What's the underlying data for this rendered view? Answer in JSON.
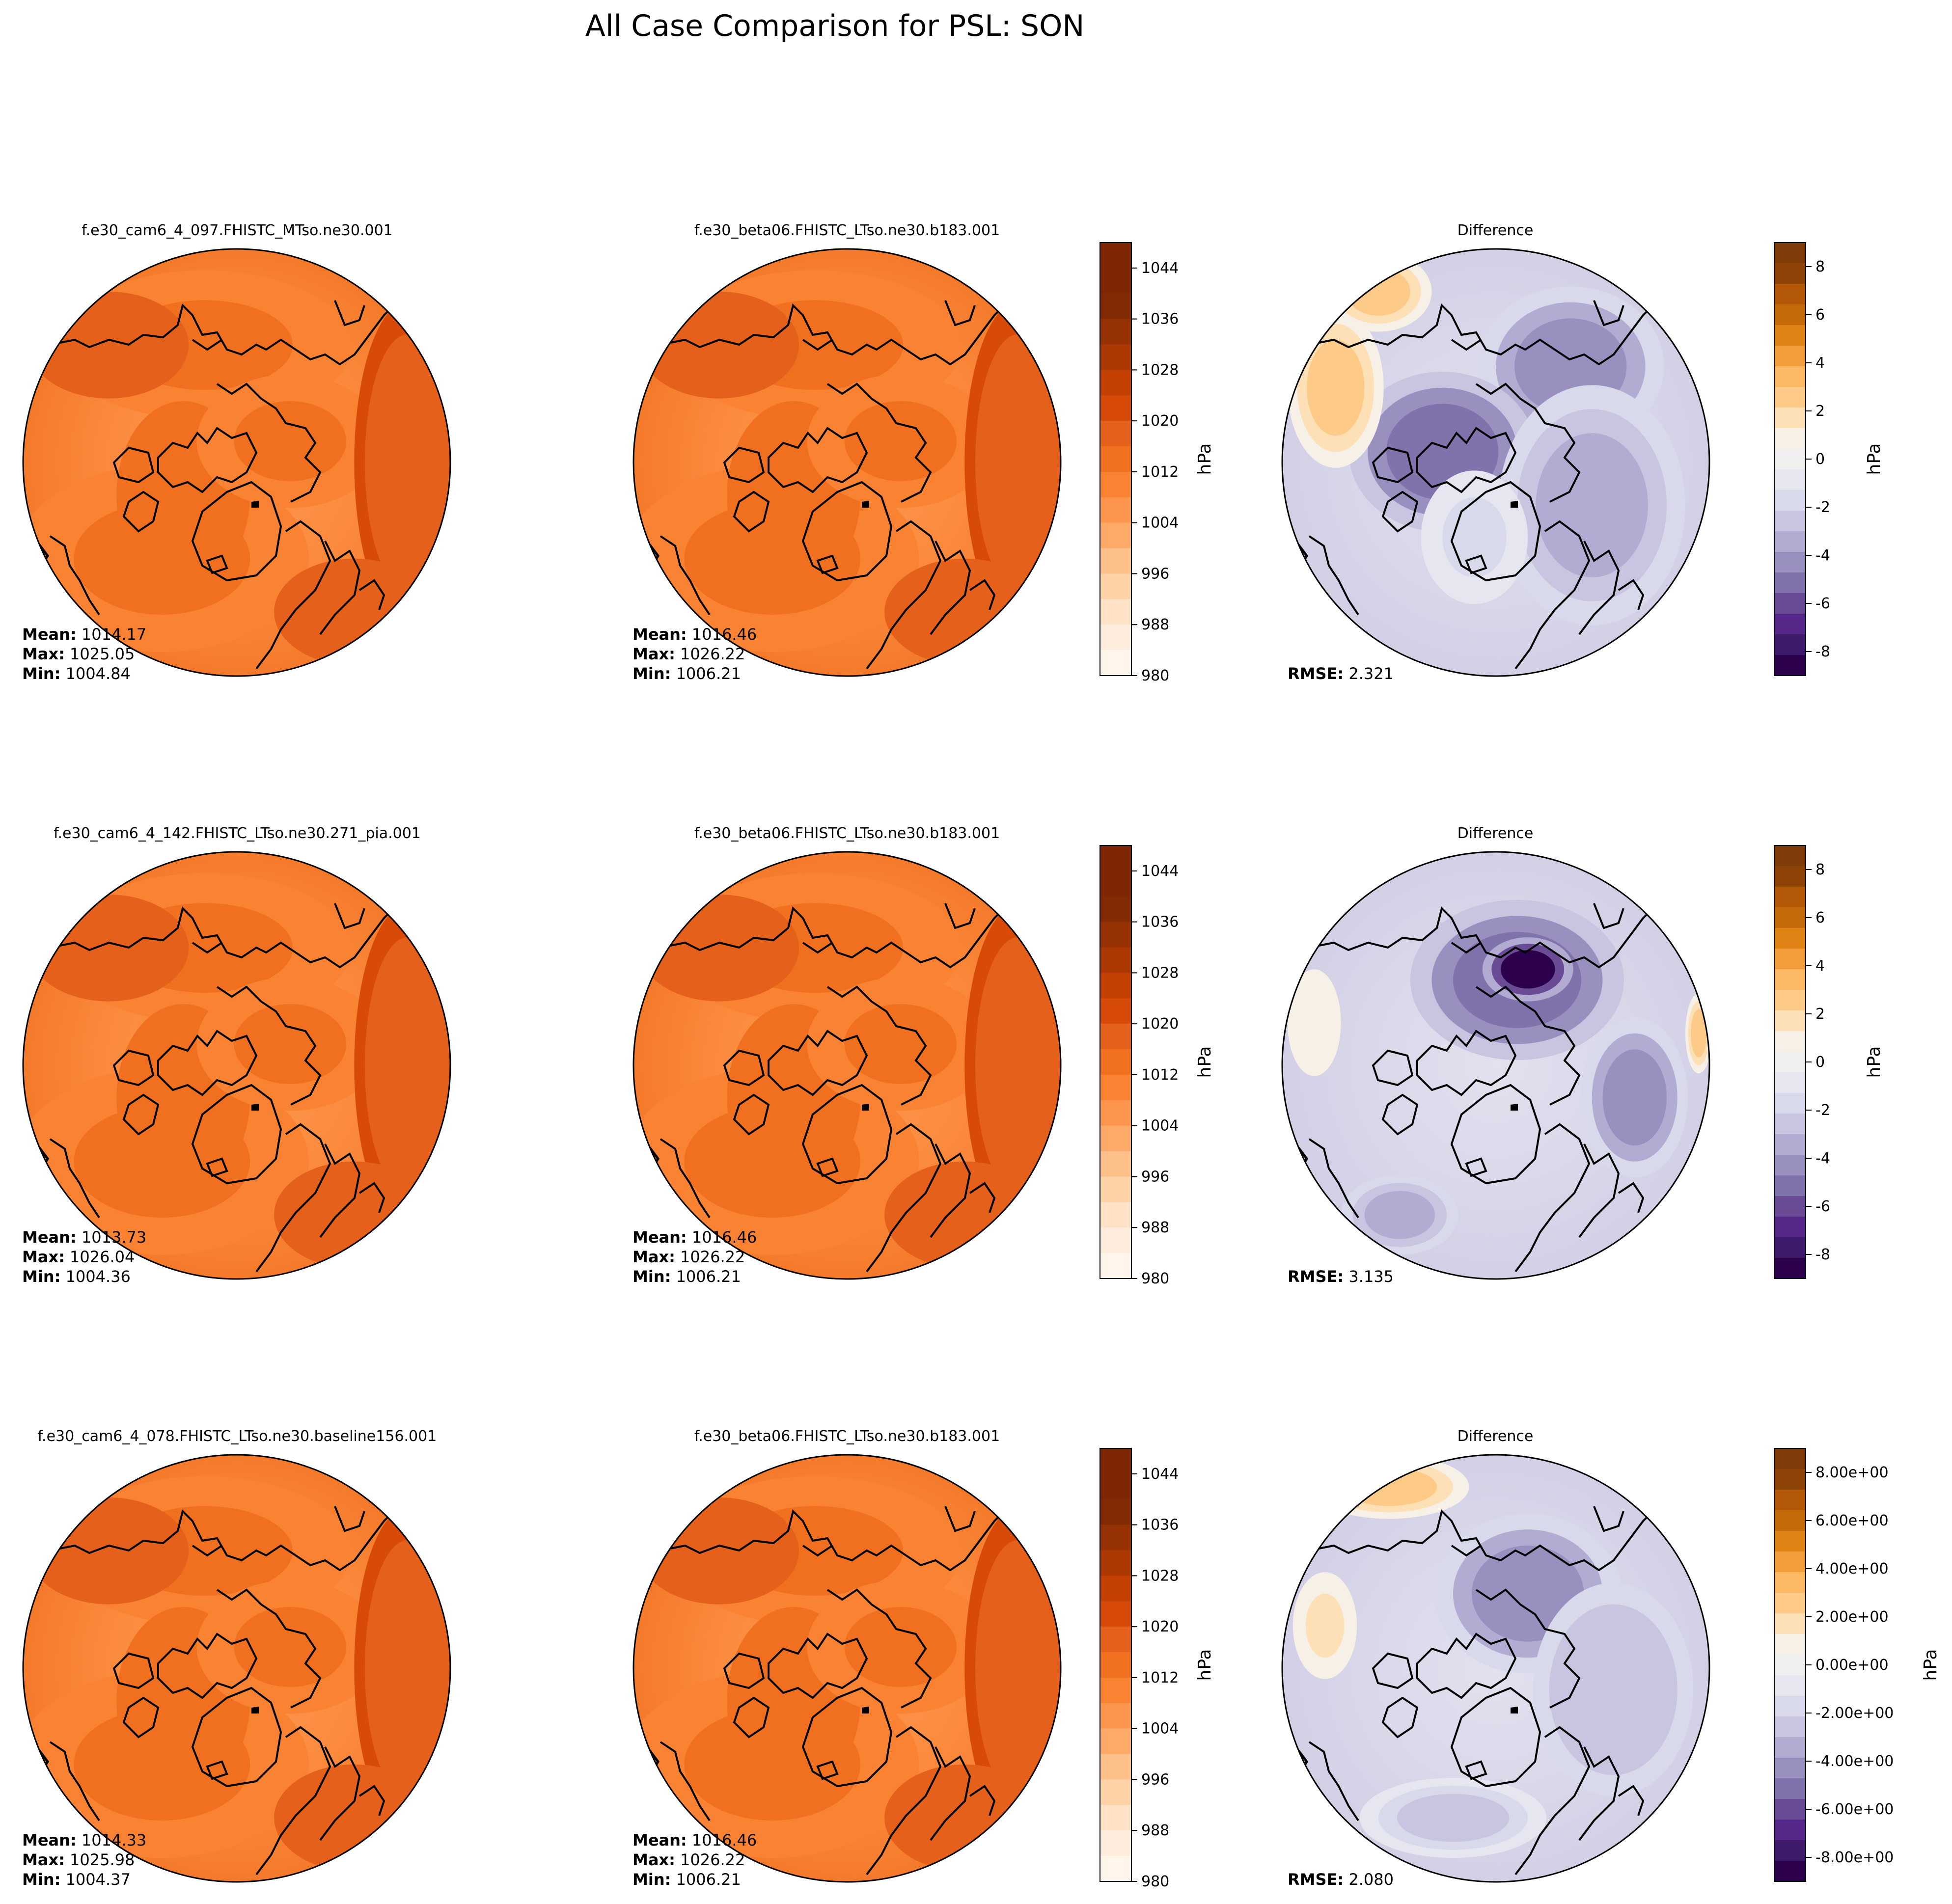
{
  "suptitle": "All Case Comparison for PSL: SON",
  "rows": [
    {
      "test": {
        "title": "f.e30_cam6_4_097.FHISTC_MTso.ne30.001",
        "mean_label": "Mean:",
        "mean": "1014.17",
        "max_label": "Max:",
        "max": "1025.05",
        "min_label": "Min:",
        "min": "1004.84"
      },
      "base": {
        "title": "f.e30_beta06.FHISTC_LTso.ne30.b183.001",
        "mean_label": "Mean:",
        "mean": "1016.46",
        "max_label": "Max:",
        "max": "1026.22",
        "min_label": "Min:",
        "min": "1006.21"
      },
      "diff": {
        "title": "Difference",
        "rmse_label": "RMSE:",
        "rmse": "2.321"
      }
    },
    {
      "test": {
        "title": "f.e30_cam6_4_142.FHISTC_LTso.ne30.271_pia.001",
        "mean_label": "Mean:",
        "mean": "1013.73",
        "max_label": "Max:",
        "max": "1026.04",
        "min_label": "Min:",
        "min": "1004.36"
      },
      "base": {
        "title": "f.e30_beta06.FHISTC_LTso.ne30.b183.001",
        "mean_label": "Mean:",
        "mean": "1016.46",
        "max_label": "Max:",
        "max": "1026.22",
        "min_label": "Min:",
        "min": "1006.21"
      },
      "diff": {
        "title": "Difference",
        "rmse_label": "RMSE:",
        "rmse": "3.135"
      }
    },
    {
      "test": {
        "title": "f.e30_cam6_4_078.FHISTC_LTso.ne30.baseline156.001",
        "mean_label": "Mean:",
        "mean": "1014.33",
        "max_label": "Max:",
        "max": "1025.98",
        "min_label": "Min:",
        "min": "1004.37"
      },
      "base": {
        "title": "f.e30_beta06.FHISTC_LTso.ne30.b183.001",
        "mean_label": "Mean:",
        "mean": "1016.46",
        "max_label": "Max:",
        "max": "1026.22",
        "min_label": "Min:",
        "min": "1006.21"
      },
      "diff": {
        "title": "Difference",
        "rmse_label": "RMSE:",
        "rmse": "2.080"
      }
    }
  ],
  "chart_data": {
    "type": "heatmap",
    "title": "All Case Comparison for PSL: SON",
    "projection": "north-polar-stereographic",
    "field_colorbar": {
      "label": "hPa",
      "range": [
        980,
        1048
      ],
      "ticks": [
        "980",
        "988",
        "996",
        "1004",
        "1012",
        "1020",
        "1028",
        "1036",
        "1044"
      ],
      "tick_values": [
        980,
        988,
        996,
        1004,
        1012,
        1020,
        1028,
        1036,
        1044
      ],
      "levels": 17,
      "colors": [
        "#fff5eb",
        "#feeddc",
        "#fee2c6",
        "#fdd2a7",
        "#fdc088",
        "#fdaa68",
        "#fd954d",
        "#f98233",
        "#f07020",
        "#e5601a",
        "#d84a07",
        "#c44103",
        "#ac3803",
        "#963103",
        "#822a04",
        "#7f2704",
        "#7f2704"
      ]
    },
    "diff_colorbar": {
      "label": "hPa",
      "range": [
        -9,
        9
      ],
      "rows_1_2_ticks": [
        "-8",
        "-6",
        "-4",
        "-2",
        "0",
        "2",
        "4",
        "6",
        "8"
      ],
      "row_3_ticks": [
        "-8.00e+00",
        "-6.00e+00",
        "-4.00e+00",
        "-2.00e+00",
        "0.00e+00",
        "2.00e+00",
        "4.00e+00",
        "6.00e+00",
        "8.00e+00"
      ],
      "tick_values": [
        -8,
        -6,
        -4,
        -2,
        0,
        2,
        4,
        6,
        8
      ],
      "colors": [
        "#2d004b",
        "#3e1a6a",
        "#542788",
        "#6a4c96",
        "#8073ac",
        "#9990c0",
        "#b2abd2",
        "#c9c4e0",
        "#d8daeb",
        "#e6e6f0",
        "#f0eeee",
        "#f7f0e6",
        "#fee0b6",
        "#fdca88",
        "#fdb863",
        "#f29c3c",
        "#e08214",
        "#c46a0a",
        "#b35806",
        "#8e4306",
        "#7f3b08"
      ]
    },
    "panels": [
      {
        "row": 1,
        "col": "test",
        "mean": 1014.17,
        "max": 1025.05,
        "min": 1004.84
      },
      {
        "row": 1,
        "col": "base",
        "mean": 1016.46,
        "max": 1026.22,
        "min": 1006.21
      },
      {
        "row": 1,
        "col": "diff",
        "rmse": 2.321
      },
      {
        "row": 2,
        "col": "test",
        "mean": 1013.73,
        "max": 1026.04,
        "min": 1004.36
      },
      {
        "row": 2,
        "col": "base",
        "mean": 1016.46,
        "max": 1026.22,
        "min": 1006.21
      },
      {
        "row": 2,
        "col": "diff",
        "rmse": 3.135
      },
      {
        "row": 3,
        "col": "test",
        "mean": 1014.33,
        "max": 1025.98,
        "min": 1004.37
      },
      {
        "row": 3,
        "col": "base",
        "mean": 1016.46,
        "max": 1026.22,
        "min": 1006.21
      },
      {
        "row": 3,
        "col": "diff",
        "rmse": 2.08
      }
    ]
  }
}
